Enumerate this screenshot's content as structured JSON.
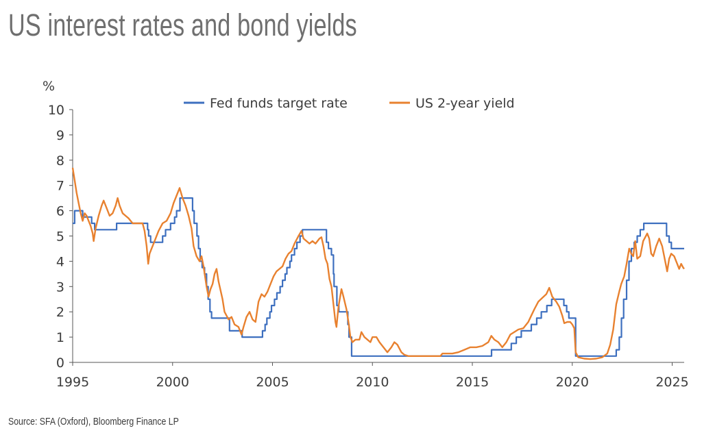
{
  "title": "US interest rates and bond yields",
  "source": "Source: SFA (Oxford), Bloomberg Finance LP",
  "chart_data": {
    "type": "line",
    "ylabel": "%",
    "xlabel": "",
    "xlim": [
      1995,
      2025.6
    ],
    "ylim": [
      0,
      10
    ],
    "x_ticks": [
      "1995",
      "2000",
      "2005",
      "2010",
      "2015",
      "2020",
      "2025"
    ],
    "y_ticks": [
      "0",
      "1",
      "2",
      "3",
      "4",
      "5",
      "6",
      "7",
      "8",
      "9",
      "10"
    ],
    "grid": false,
    "legend": "top",
    "series": [
      {
        "name": "Fed funds target rate",
        "color": "#3d6fbf",
        "style": "step",
        "points": [
          [
            1995.0,
            5.5
          ],
          [
            1995.1,
            6.0
          ],
          [
            1995.5,
            5.75
          ],
          [
            1995.95,
            5.5
          ],
          [
            1996.1,
            5.25
          ],
          [
            1997.2,
            5.5
          ],
          [
            1998.75,
            5.25
          ],
          [
            1998.8,
            5.0
          ],
          [
            1998.9,
            4.75
          ],
          [
            1999.5,
            5.0
          ],
          [
            1999.65,
            5.25
          ],
          [
            1999.9,
            5.5
          ],
          [
            2000.1,
            5.75
          ],
          [
            2000.2,
            6.0
          ],
          [
            2000.37,
            6.5
          ],
          [
            2001.0,
            6.0
          ],
          [
            2001.08,
            5.5
          ],
          [
            2001.22,
            5.0
          ],
          [
            2001.3,
            4.5
          ],
          [
            2001.38,
            4.0
          ],
          [
            2001.48,
            3.75
          ],
          [
            2001.6,
            3.5
          ],
          [
            2001.7,
            3.0
          ],
          [
            2001.78,
            2.5
          ],
          [
            2001.87,
            2.0
          ],
          [
            2001.95,
            1.75
          ],
          [
            2002.85,
            1.25
          ],
          [
            2003.48,
            1.0
          ],
          [
            2004.5,
            1.25
          ],
          [
            2004.63,
            1.5
          ],
          [
            2004.72,
            1.75
          ],
          [
            2004.87,
            2.0
          ],
          [
            2004.95,
            2.25
          ],
          [
            2005.1,
            2.5
          ],
          [
            2005.22,
            2.75
          ],
          [
            2005.38,
            3.0
          ],
          [
            2005.5,
            3.25
          ],
          [
            2005.63,
            3.5
          ],
          [
            2005.72,
            3.75
          ],
          [
            2005.87,
            4.0
          ],
          [
            2005.95,
            4.25
          ],
          [
            2006.1,
            4.5
          ],
          [
            2006.22,
            4.75
          ],
          [
            2006.38,
            5.0
          ],
          [
            2006.5,
            5.25
          ],
          [
            2007.7,
            4.75
          ],
          [
            2007.8,
            4.5
          ],
          [
            2007.95,
            4.25
          ],
          [
            2008.05,
            3.5
          ],
          [
            2008.08,
            3.0
          ],
          [
            2008.22,
            2.25
          ],
          [
            2008.32,
            2.0
          ],
          [
            2008.77,
            1.5
          ],
          [
            2008.83,
            1.0
          ],
          [
            2008.96,
            0.25
          ],
          [
            2015.96,
            0.5
          ],
          [
            2016.95,
            0.75
          ],
          [
            2017.2,
            1.0
          ],
          [
            2017.45,
            1.25
          ],
          [
            2017.95,
            1.5
          ],
          [
            2018.22,
            1.75
          ],
          [
            2018.45,
            2.0
          ],
          [
            2018.73,
            2.25
          ],
          [
            2018.97,
            2.5
          ],
          [
            2019.58,
            2.25
          ],
          [
            2019.72,
            2.0
          ],
          [
            2019.83,
            1.75
          ],
          [
            2020.17,
            0.25
          ],
          [
            2022.2,
            0.5
          ],
          [
            2022.35,
            1.0
          ],
          [
            2022.46,
            1.75
          ],
          [
            2022.57,
            2.5
          ],
          [
            2022.72,
            3.25
          ],
          [
            2022.84,
            4.0
          ],
          [
            2022.96,
            4.5
          ],
          [
            2023.1,
            4.75
          ],
          [
            2023.25,
            5.0
          ],
          [
            2023.4,
            5.25
          ],
          [
            2023.58,
            5.5
          ],
          [
            2024.72,
            5.0
          ],
          [
            2024.85,
            4.75
          ],
          [
            2024.96,
            4.5
          ],
          [
            2025.6,
            4.5
          ]
        ]
      },
      {
        "name": "US 2-year yield",
        "color": "#e8812f",
        "style": "line",
        "points": [
          [
            1995.0,
            7.7
          ],
          [
            1995.1,
            7.2
          ],
          [
            1995.2,
            6.7
          ],
          [
            1995.3,
            6.3
          ],
          [
            1995.4,
            5.9
          ],
          [
            1995.5,
            5.6
          ],
          [
            1995.6,
            5.9
          ],
          [
            1995.7,
            5.8
          ],
          [
            1995.8,
            5.6
          ],
          [
            1995.9,
            5.4
          ],
          [
            1996.0,
            5.1
          ],
          [
            1996.05,
            4.8
          ],
          [
            1996.15,
            5.3
          ],
          [
            1996.3,
            5.8
          ],
          [
            1996.45,
            6.2
          ],
          [
            1996.55,
            6.4
          ],
          [
            1996.7,
            6.1
          ],
          [
            1996.85,
            5.8
          ],
          [
            1997.0,
            5.9
          ],
          [
            1997.15,
            6.2
          ],
          [
            1997.25,
            6.5
          ],
          [
            1997.35,
            6.2
          ],
          [
            1997.5,
            5.9
          ],
          [
            1997.65,
            5.8
          ],
          [
            1997.8,
            5.7
          ],
          [
            1998.0,
            5.5
          ],
          [
            1998.3,
            5.5
          ],
          [
            1998.5,
            5.5
          ],
          [
            1998.6,
            5.2
          ],
          [
            1998.7,
            4.6
          ],
          [
            1998.78,
            3.9
          ],
          [
            1998.85,
            4.3
          ],
          [
            1998.95,
            4.5
          ],
          [
            1999.1,
            4.8
          ],
          [
            1999.3,
            5.2
          ],
          [
            1999.5,
            5.5
          ],
          [
            1999.7,
            5.6
          ],
          [
            1999.9,
            5.9
          ],
          [
            2000.05,
            6.3
          ],
          [
            2000.2,
            6.6
          ],
          [
            2000.35,
            6.9
          ],
          [
            2000.5,
            6.5
          ],
          [
            2000.65,
            6.2
          ],
          [
            2000.8,
            5.8
          ],
          [
            2000.95,
            5.3
          ],
          [
            2001.05,
            4.6
          ],
          [
            2001.2,
            4.2
          ],
          [
            2001.35,
            4.0
          ],
          [
            2001.45,
            4.2
          ],
          [
            2001.55,
            3.8
          ],
          [
            2001.7,
            3.0
          ],
          [
            2001.8,
            2.6
          ],
          [
            2001.9,
            2.9
          ],
          [
            2002.0,
            3.1
          ],
          [
            2002.1,
            3.5
          ],
          [
            2002.2,
            3.7
          ],
          [
            2002.3,
            3.2
          ],
          [
            2002.5,
            2.5
          ],
          [
            2002.6,
            2.0
          ],
          [
            2002.8,
            1.7
          ],
          [
            2002.95,
            1.8
          ],
          [
            2003.1,
            1.5
          ],
          [
            2003.3,
            1.4
          ],
          [
            2003.45,
            1.1
          ],
          [
            2003.55,
            1.4
          ],
          [
            2003.7,
            1.8
          ],
          [
            2003.85,
            2.0
          ],
          [
            2004.0,
            1.7
          ],
          [
            2004.15,
            1.6
          ],
          [
            2004.3,
            2.4
          ],
          [
            2004.45,
            2.7
          ],
          [
            2004.6,
            2.6
          ],
          [
            2004.75,
            2.8
          ],
          [
            2004.9,
            3.1
          ],
          [
            2005.05,
            3.4
          ],
          [
            2005.2,
            3.6
          ],
          [
            2005.35,
            3.7
          ],
          [
            2005.5,
            3.8
          ],
          [
            2005.65,
            4.1
          ],
          [
            2005.8,
            4.3
          ],
          [
            2005.95,
            4.4
          ],
          [
            2006.1,
            4.7
          ],
          [
            2006.3,
            5.0
          ],
          [
            2006.45,
            5.2
          ],
          [
            2006.55,
            4.9
          ],
          [
            2006.7,
            4.8
          ],
          [
            2006.85,
            4.7
          ],
          [
            2007.0,
            4.8
          ],
          [
            2007.15,
            4.7
          ],
          [
            2007.35,
            4.9
          ],
          [
            2007.45,
            4.95
          ],
          [
            2007.55,
            4.6
          ],
          [
            2007.65,
            4.1
          ],
          [
            2007.75,
            3.9
          ],
          [
            2007.85,
            3.3
          ],
          [
            2007.95,
            3.0
          ],
          [
            2008.05,
            2.3
          ],
          [
            2008.15,
            1.6
          ],
          [
            2008.2,
            1.4
          ],
          [
            2008.3,
            2.2
          ],
          [
            2008.45,
            2.9
          ],
          [
            2008.55,
            2.6
          ],
          [
            2008.7,
            2.1
          ],
          [
            2008.8,
            1.6
          ],
          [
            2008.9,
            1.0
          ],
          [
            2009.0,
            0.8
          ],
          [
            2009.15,
            0.9
          ],
          [
            2009.35,
            0.9
          ],
          [
            2009.45,
            1.2
          ],
          [
            2009.6,
            1.0
          ],
          [
            2009.75,
            0.9
          ],
          [
            2009.9,
            0.8
          ],
          [
            2010.0,
            1.0
          ],
          [
            2010.2,
            1.0
          ],
          [
            2010.35,
            0.8
          ],
          [
            2010.55,
            0.6
          ],
          [
            2010.75,
            0.4
          ],
          [
            2010.95,
            0.6
          ],
          [
            2011.1,
            0.8
          ],
          [
            2011.25,
            0.7
          ],
          [
            2011.45,
            0.4
          ],
          [
            2011.6,
            0.3
          ],
          [
            2011.8,
            0.25
          ],
          [
            2012.0,
            0.25
          ],
          [
            2012.5,
            0.25
          ],
          [
            2013.0,
            0.25
          ],
          [
            2013.4,
            0.25
          ],
          [
            2013.5,
            0.35
          ],
          [
            2013.75,
            0.35
          ],
          [
            2014.0,
            0.35
          ],
          [
            2014.3,
            0.4
          ],
          [
            2014.6,
            0.5
          ],
          [
            2014.9,
            0.6
          ],
          [
            2015.2,
            0.6
          ],
          [
            2015.5,
            0.65
          ],
          [
            2015.8,
            0.8
          ],
          [
            2015.95,
            1.05
          ],
          [
            2016.1,
            0.9
          ],
          [
            2016.3,
            0.8
          ],
          [
            2016.5,
            0.6
          ],
          [
            2016.7,
            0.8
          ],
          [
            2016.9,
            1.1
          ],
          [
            2017.1,
            1.2
          ],
          [
            2017.3,
            1.3
          ],
          [
            2017.55,
            1.35
          ],
          [
            2017.8,
            1.6
          ],
          [
            2017.95,
            1.85
          ],
          [
            2018.1,
            2.1
          ],
          [
            2018.3,
            2.4
          ],
          [
            2018.5,
            2.55
          ],
          [
            2018.7,
            2.7
          ],
          [
            2018.85,
            2.95
          ],
          [
            2019.0,
            2.6
          ],
          [
            2019.2,
            2.4
          ],
          [
            2019.35,
            2.2
          ],
          [
            2019.5,
            1.85
          ],
          [
            2019.6,
            1.55
          ],
          [
            2019.75,
            1.6
          ],
          [
            2019.9,
            1.6
          ],
          [
            2020.0,
            1.5
          ],
          [
            2020.1,
            1.35
          ],
          [
            2020.17,
            0.4
          ],
          [
            2020.3,
            0.2
          ],
          [
            2020.6,
            0.15
          ],
          [
            2020.9,
            0.13
          ],
          [
            2021.2,
            0.15
          ],
          [
            2021.5,
            0.2
          ],
          [
            2021.75,
            0.35
          ],
          [
            2021.9,
            0.7
          ],
          [
            2022.05,
            1.3
          ],
          [
            2022.2,
            2.3
          ],
          [
            2022.35,
            2.8
          ],
          [
            2022.45,
            3.1
          ],
          [
            2022.6,
            3.4
          ],
          [
            2022.72,
            3.9
          ],
          [
            2022.85,
            4.5
          ],
          [
            2022.95,
            4.3
          ],
          [
            2023.05,
            4.2
          ],
          [
            2023.15,
            4.8
          ],
          [
            2023.25,
            4.1
          ],
          [
            2023.4,
            4.2
          ],
          [
            2023.55,
            4.8
          ],
          [
            2023.75,
            5.1
          ],
          [
            2023.85,
            4.9
          ],
          [
            2023.95,
            4.3
          ],
          [
            2024.05,
            4.2
          ],
          [
            2024.2,
            4.6
          ],
          [
            2024.35,
            4.9
          ],
          [
            2024.5,
            4.6
          ],
          [
            2024.65,
            4.0
          ],
          [
            2024.75,
            3.6
          ],
          [
            2024.85,
            4.1
          ],
          [
            2024.95,
            4.3
          ],
          [
            2025.1,
            4.2
          ],
          [
            2025.25,
            3.9
          ],
          [
            2025.35,
            3.7
          ],
          [
            2025.45,
            3.9
          ],
          [
            2025.55,
            3.75
          ],
          [
            2025.6,
            3.7
          ]
        ]
      }
    ]
  }
}
